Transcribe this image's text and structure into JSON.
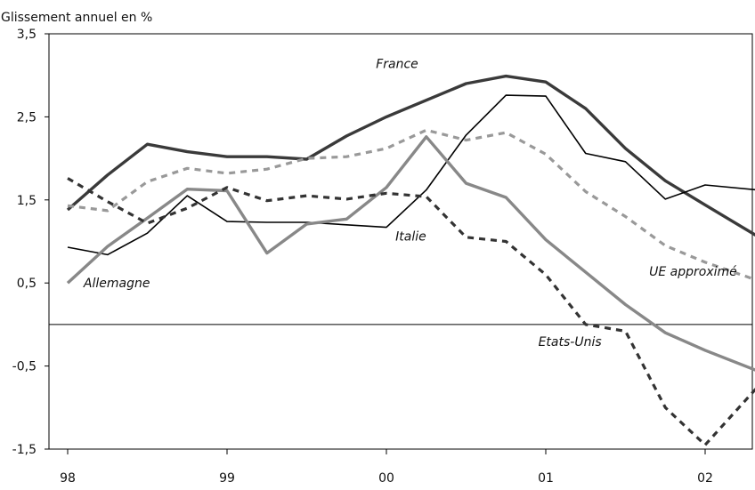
{
  "chart_data": {
    "type": "line",
    "title": "",
    "subtitle": "Glissement annuel en %",
    "xlabel": "",
    "ylabel": "",
    "ylim": [
      -1.5,
      3.5
    ],
    "yticks": [
      "3,5",
      "2,5",
      "1,5",
      "0,5",
      "-0,5",
      "-1,5"
    ],
    "ytick_values": [
      3.5,
      2.5,
      1.5,
      0.5,
      -0.5,
      -1.5
    ],
    "xticks": [
      "98",
      "99",
      "00",
      "01",
      "02"
    ],
    "xtick_values": [
      1998,
      1999,
      2000,
      2001,
      2002
    ],
    "xlim": [
      1998,
      2002.33
    ],
    "grid": false,
    "zero_line": true,
    "series": [
      {
        "name": "France",
        "color": "#3a3a3a",
        "style": "solid-thick",
        "x": [
          1998.0,
          1998.25,
          1998.5,
          1998.75,
          1999.0,
          1999.25,
          1999.5,
          1999.75,
          2000.0,
          2000.25,
          2000.5,
          2000.75,
          2001.0,
          2001.25,
          2001.5,
          2001.75,
          2002.0,
          2002.33
        ],
        "y": [
          1.38,
          1.8,
          2.17,
          2.08,
          2.02,
          2.02,
          1.99,
          2.27,
          2.5,
          2.7,
          2.9,
          2.99,
          2.92,
          2.6,
          2.12,
          1.73,
          1.44,
          1.06
        ]
      },
      {
        "name": "UE approximé",
        "color": "#999999",
        "style": "dashed-thick",
        "x": [
          1998.0,
          1998.25,
          1998.5,
          1998.75,
          1999.0,
          1999.25,
          1999.5,
          1999.75,
          2000.0,
          2000.25,
          2000.5,
          2000.75,
          2001.0,
          2001.25,
          2001.5,
          2001.75,
          2002.0,
          2002.33
        ],
        "y": [
          1.43,
          1.37,
          1.72,
          1.88,
          1.82,
          1.87,
          2.0,
          2.02,
          2.12,
          2.34,
          2.22,
          2.31,
          2.05,
          1.6,
          1.3,
          0.95,
          0.75,
          0.53
        ]
      },
      {
        "name": "Italie",
        "color": "#000000",
        "style": "solid-thin",
        "x": [
          1998.0,
          1998.25,
          1998.5,
          1998.75,
          1999.0,
          1999.25,
          1999.5,
          1999.75,
          2000.0,
          2000.25,
          2000.5,
          2000.75,
          2001.0,
          2001.25,
          2001.5,
          2001.75,
          2002.0,
          2002.33
        ],
        "y": [
          0.93,
          0.84,
          1.1,
          1.55,
          1.24,
          1.23,
          1.23,
          1.2,
          1.17,
          1.62,
          2.28,
          2.76,
          2.75,
          2.06,
          1.96,
          1.51,
          1.68,
          1.62
        ]
      },
      {
        "name": "Allemagne",
        "color": "#888888",
        "style": "solid-thick",
        "x": [
          1998.0,
          1998.25,
          1998.5,
          1998.75,
          1999.0,
          1999.25,
          1999.5,
          1999.75,
          2000.0,
          2000.25,
          2000.5,
          2000.75,
          2001.0,
          2001.25,
          2001.5,
          2001.75,
          2002.0,
          2002.33
        ],
        "y": [
          0.5,
          0.94,
          1.28,
          1.63,
          1.61,
          0.86,
          1.21,
          1.27,
          1.65,
          2.26,
          1.7,
          1.53,
          1.02,
          0.63,
          0.24,
          -0.1,
          -0.31,
          -0.56
        ]
      },
      {
        "name": "Etats-Unis",
        "color": "#333333",
        "style": "dashed-thick",
        "x": [
          1998.0,
          1998.25,
          1998.5,
          1998.75,
          1999.0,
          1999.25,
          1999.5,
          1999.75,
          2000.0,
          2000.25,
          2000.5,
          2000.75,
          2001.0,
          2001.25,
          2001.5,
          2001.75,
          2002.0,
          2002.33
        ],
        "y": [
          1.76,
          1.48,
          1.22,
          1.4,
          1.65,
          1.49,
          1.55,
          1.51,
          1.58,
          1.54,
          1.05,
          1.0,
          0.6,
          0.0,
          -0.08,
          -1.0,
          -1.45,
          -0.75
        ]
      }
    ],
    "labels": [
      {
        "text": "France",
        "series": "France",
        "x": 2000.2,
        "y": 3.09,
        "anchor": "end"
      },
      {
        "text": "Italie",
        "series": "Italie",
        "x": 2000.25,
        "y": 1.01,
        "anchor": "end"
      },
      {
        "text": "Allemagne",
        "series": "Allemagne",
        "x": 1998.1,
        "y": 0.45,
        "anchor": "start"
      },
      {
        "text": "UE approximé",
        "series": "UE approximé",
        "x": 2002.2,
        "y": 0.59,
        "anchor": "end"
      },
      {
        "text": "Etats-Unis",
        "series": "Etats-Unis",
        "x": 2001.35,
        "y": -0.26,
        "anchor": "end"
      }
    ]
  }
}
